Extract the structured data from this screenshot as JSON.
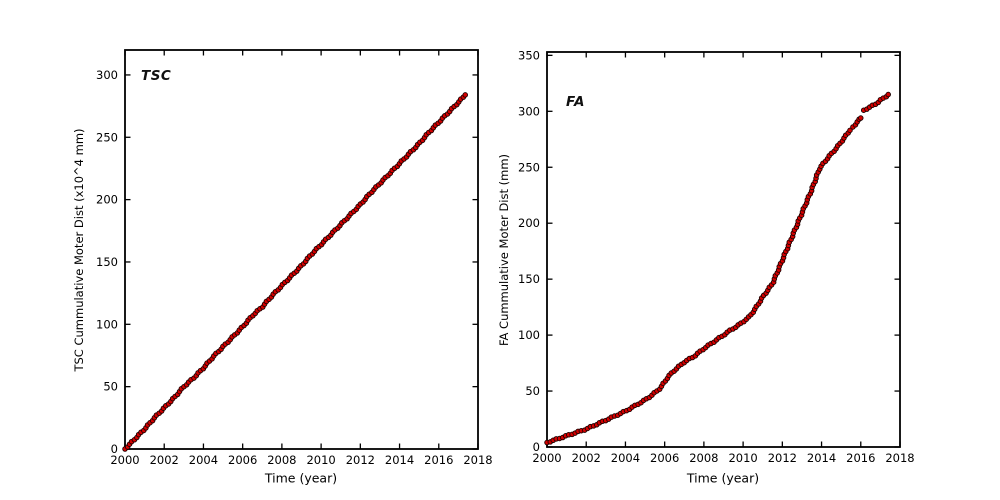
{
  "figure": {
    "background": "#ffffff",
    "axes_color": "#000000"
  },
  "chart_data": [
    {
      "id": "tsc",
      "type": "scatter",
      "title": "TSC",
      "xlabel": "Time (year)",
      "ylabel": "TSC Cummulative Moter Dist (x10^4 mm)",
      "xlim": [
        2000,
        2018
      ],
      "ylim": [
        0,
        320
      ],
      "xticks": [
        2000,
        2002,
        2004,
        2006,
        2008,
        2010,
        2012,
        2014,
        2016,
        2018
      ],
      "yticks": [
        0,
        50,
        100,
        150,
        200,
        250,
        300
      ],
      "grid": false,
      "legend": "none",
      "marker_color": "#d40000",
      "marker_edge_color": "#1c0000",
      "segments": [
        [
          [
            2000,
            0
          ],
          [
            2000.5,
            8
          ],
          [
            2001,
            16
          ],
          [
            2001.5,
            25
          ],
          [
            2002,
            33
          ],
          [
            2002.5,
            41
          ],
          [
            2003,
            50
          ],
          [
            2003.5,
            57
          ],
          [
            2004,
            65
          ],
          [
            2004.5,
            74
          ],
          [
            2005,
            82
          ],
          [
            2005.5,
            90
          ],
          [
            2006,
            98
          ],
          [
            2006.5,
            107
          ],
          [
            2007,
            114
          ],
          [
            2007.5,
            123
          ],
          [
            2008,
            131
          ],
          [
            2008.5,
            139
          ],
          [
            2009,
            147
          ],
          [
            2009.5,
            156
          ],
          [
            2010,
            164
          ],
          [
            2010.5,
            172
          ],
          [
            2011,
            180
          ],
          [
            2011.5,
            188
          ],
          [
            2012,
            196
          ],
          [
            2012.5,
            205
          ],
          [
            2013,
            213
          ],
          [
            2013.5,
            221
          ],
          [
            2014,
            229
          ],
          [
            2014.5,
            237
          ],
          [
            2015,
            245
          ],
          [
            2015.5,
            254
          ],
          [
            2016,
            262
          ],
          [
            2016.5,
            270
          ],
          [
            2017,
            278
          ],
          [
            2017.35,
            284
          ]
        ]
      ]
    },
    {
      "id": "fa",
      "type": "scatter",
      "title": "FA",
      "xlabel": "Time (year)",
      "ylabel": "FA Cummulative Moter Dist (mm)",
      "xlim": [
        2000,
        2018
      ],
      "ylim": [
        0,
        353
      ],
      "xticks": [
        2000,
        2002,
        2004,
        2006,
        2008,
        2010,
        2012,
        2014,
        2016,
        2018
      ],
      "yticks": [
        0,
        50,
        100,
        150,
        200,
        250,
        300,
        350
      ],
      "grid": false,
      "legend": "none",
      "marker_color": "#d40000",
      "marker_edge_color": "#1c0000",
      "segments": [
        [
          [
            2000,
            4
          ],
          [
            2000.5,
            7
          ],
          [
            2001,
            10
          ],
          [
            2001.5,
            13
          ],
          [
            2002,
            16
          ],
          [
            2002.5,
            20
          ],
          [
            2003,
            24
          ],
          [
            2003.5,
            28
          ],
          [
            2004,
            32
          ],
          [
            2004.5,
            37
          ],
          [
            2005,
            42
          ],
          [
            2005.4,
            47
          ],
          [
            2005.8,
            53
          ],
          [
            2006.1,
            61
          ],
          [
            2006.4,
            67
          ],
          [
            2006.8,
            73
          ],
          [
            2007,
            76
          ],
          [
            2007.5,
            81
          ],
          [
            2008,
            88
          ],
          [
            2008.5,
            94
          ],
          [
            2009,
            100
          ],
          [
            2009.4,
            105
          ],
          [
            2009.7,
            108
          ],
          [
            2010,
            112
          ],
          [
            2010.3,
            116
          ],
          [
            2010.6,
            123
          ],
          [
            2011,
            134
          ],
          [
            2011.5,
            146
          ],
          [
            2012,
            167
          ],
          [
            2012.5,
            188
          ],
          [
            2013,
            209
          ],
          [
            2013.5,
            230
          ],
          [
            2013.9,
            249
          ],
          [
            2014.3,
            258
          ],
          [
            2014.8,
            268
          ],
          [
            2015.1,
            275
          ],
          [
            2015.45,
            283
          ]
        ],
        [
          [
            2015.6,
            286
          ],
          [
            2015.75,
            289
          ],
          [
            2015.9,
            292
          ],
          [
            2016.0,
            294
          ]
        ],
        [
          [
            2016.15,
            301
          ],
          [
            2016.5,
            304
          ],
          [
            2016.8,
            307
          ],
          [
            2017.0,
            310
          ],
          [
            2017.2,
            312
          ],
          [
            2017.4,
            315
          ]
        ]
      ]
    }
  ]
}
